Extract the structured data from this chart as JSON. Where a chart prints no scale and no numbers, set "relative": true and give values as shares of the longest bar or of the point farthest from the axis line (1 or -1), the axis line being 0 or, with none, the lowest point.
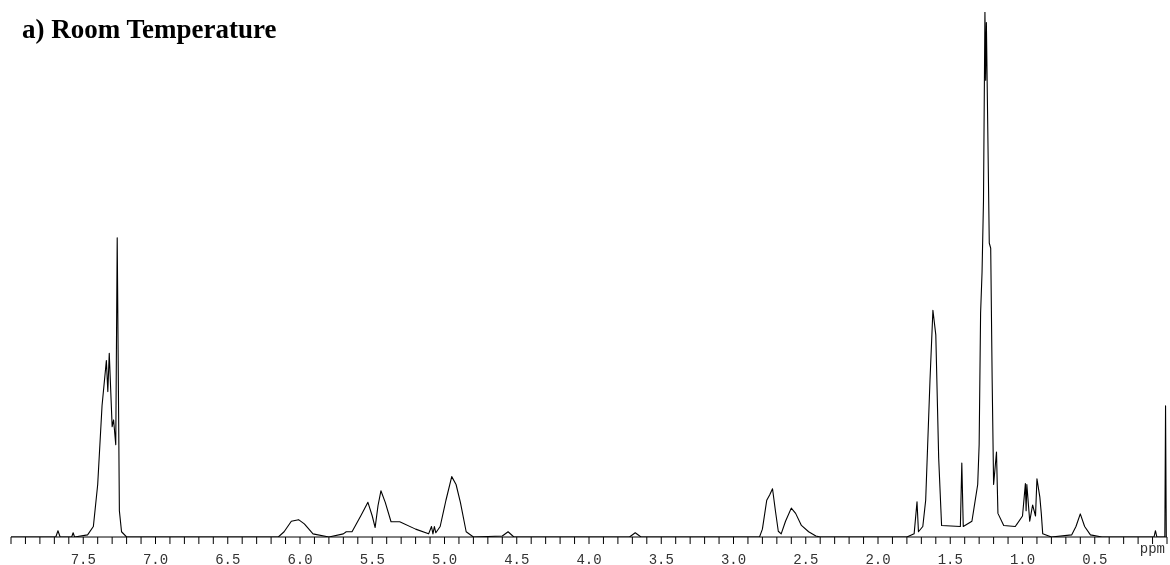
{
  "chart_data": {
    "type": "line",
    "title": "a) Room Temperature",
    "xlabel": "ppm",
    "relative": true,
    "xlim": [
      8.0,
      0.0
    ],
    "xticks": [
      {
        "value": 8.0,
        "label": null
      },
      {
        "value": 7.9,
        "label": null
      },
      {
        "value": 7.8,
        "label": null
      },
      {
        "value": 7.7,
        "label": null
      },
      {
        "value": 7.6,
        "label": null
      },
      {
        "value": 7.5,
        "label": "7.5"
      },
      {
        "value": 7.4,
        "label": null
      },
      {
        "value": 7.3,
        "label": null
      },
      {
        "value": 7.2,
        "label": null
      },
      {
        "value": 7.1,
        "label": null
      },
      {
        "value": 7.0,
        "label": "7.0"
      },
      {
        "value": 6.9,
        "label": null
      },
      {
        "value": 6.8,
        "label": null
      },
      {
        "value": 6.7,
        "label": null
      },
      {
        "value": 6.6,
        "label": null
      },
      {
        "value": 6.5,
        "label": "6.5"
      },
      {
        "value": 6.4,
        "label": null
      },
      {
        "value": 6.3,
        "label": null
      },
      {
        "value": 6.2,
        "label": null
      },
      {
        "value": 6.1,
        "label": null
      },
      {
        "value": 6.0,
        "label": "6.0"
      },
      {
        "value": 5.9,
        "label": null
      },
      {
        "value": 5.8,
        "label": null
      },
      {
        "value": 5.7,
        "label": null
      },
      {
        "value": 5.6,
        "label": null
      },
      {
        "value": 5.5,
        "label": "5.5"
      },
      {
        "value": 5.4,
        "label": null
      },
      {
        "value": 5.3,
        "label": null
      },
      {
        "value": 5.2,
        "label": null
      },
      {
        "value": 5.1,
        "label": null
      },
      {
        "value": 5.0,
        "label": "5.0"
      },
      {
        "value": 4.9,
        "label": null
      },
      {
        "value": 4.8,
        "label": null
      },
      {
        "value": 4.7,
        "label": null
      },
      {
        "value": 4.6,
        "label": null
      },
      {
        "value": 4.5,
        "label": "4.5"
      },
      {
        "value": 4.4,
        "label": null
      },
      {
        "value": 4.3,
        "label": null
      },
      {
        "value": 4.2,
        "label": null
      },
      {
        "value": 4.1,
        "label": null
      },
      {
        "value": 4.0,
        "label": "4.0"
      },
      {
        "value": 3.9,
        "label": null
      },
      {
        "value": 3.8,
        "label": null
      },
      {
        "value": 3.7,
        "label": null
      },
      {
        "value": 3.6,
        "label": null
      },
      {
        "value": 3.5,
        "label": "3.5"
      },
      {
        "value": 3.4,
        "label": null
      },
      {
        "value": 3.3,
        "label": null
      },
      {
        "value": 3.2,
        "label": null
      },
      {
        "value": 3.1,
        "label": null
      },
      {
        "value": 3.0,
        "label": "3.0"
      },
      {
        "value": 2.9,
        "label": null
      },
      {
        "value": 2.8,
        "label": null
      },
      {
        "value": 2.7,
        "label": null
      },
      {
        "value": 2.6,
        "label": null
      },
      {
        "value": 2.5,
        "label": "2.5"
      },
      {
        "value": 2.4,
        "label": null
      },
      {
        "value": 2.3,
        "label": null
      },
      {
        "value": 2.2,
        "label": null
      },
      {
        "value": 2.1,
        "label": null
      },
      {
        "value": 2.0,
        "label": "2.0"
      },
      {
        "value": 1.9,
        "label": null
      },
      {
        "value": 1.8,
        "label": null
      },
      {
        "value": 1.7,
        "label": null
      },
      {
        "value": 1.6,
        "label": null
      },
      {
        "value": 1.5,
        "label": "1.5"
      },
      {
        "value": 1.4,
        "label": null
      },
      {
        "value": 1.3,
        "label": null
      },
      {
        "value": 1.2,
        "label": null
      },
      {
        "value": 1.1,
        "label": null
      },
      {
        "value": 1.0,
        "label": "1.0"
      },
      {
        "value": 0.9,
        "label": null
      },
      {
        "value": 0.8,
        "label": null
      },
      {
        "value": 0.7,
        "label": null
      },
      {
        "value": 0.6,
        "label": null
      },
      {
        "value": 0.5,
        "label": "0.5"
      },
      {
        "value": 0.4,
        "label": null
      },
      {
        "value": 0.3,
        "label": null
      },
      {
        "value": 0.2,
        "label": null
      },
      {
        "value": 0.1,
        "label": null
      },
      {
        "value": 0.0,
        "label": null
      }
    ],
    "grid": false,
    "marker": "none",
    "line_style": "solid",
    "series": [
      {
        "color": "#000000",
        "x": [
          8.0,
          7.69,
          7.675,
          7.66,
          7.58,
          7.57,
          7.56,
          7.47,
          7.43,
          7.4,
          7.37,
          7.34,
          7.33,
          7.32,
          7.3,
          7.29,
          7.275,
          7.265,
          7.25,
          7.235,
          7.2,
          6.15,
          6.11,
          6.06,
          6.01,
          5.97,
          5.91,
          5.8,
          5.7,
          5.68,
          5.64,
          5.58,
          5.53,
          5.5,
          5.48,
          5.46,
          5.44,
          5.41,
          5.37,
          5.31,
          5.2,
          5.11,
          5.09,
          5.08,
          5.07,
          5.06,
          5.03,
          4.99,
          4.95,
          4.92,
          4.89,
          4.85,
          4.8,
          4.6,
          4.56,
          4.52,
          3.72,
          3.68,
          3.64,
          2.82,
          2.8,
          2.77,
          2.75,
          2.73,
          2.71,
          2.69,
          2.67,
          2.64,
          2.6,
          2.57,
          2.53,
          2.48,
          2.43,
          2.4,
          1.8,
          1.75,
          1.73,
          1.72,
          1.69,
          1.67,
          1.64,
          1.62,
          1.6,
          1.58,
          1.56,
          1.43,
          1.42,
          1.41,
          1.35,
          1.31,
          1.3,
          1.29,
          1.28,
          1.27,
          1.26,
          1.255,
          1.25,
          1.23,
          1.22,
          1.21,
          1.2,
          1.18,
          1.17,
          1.13,
          1.05,
          1.0,
          0.98,
          0.975,
          0.97,
          0.95,
          0.93,
          0.91,
          0.9,
          0.88,
          0.87,
          0.86,
          0.8,
          0.66,
          0.63,
          0.6,
          0.57,
          0.53,
          0.45,
          0.09,
          0.08,
          0.07,
          0.015,
          0.01,
          0.005
        ],
        "values": [
          0,
          0,
          0.012,
          0,
          0,
          0.008,
          0,
          0.004,
          0.02,
          0.1,
          0.25,
          0.336,
          0.277,
          0.35,
          0.21,
          0.223,
          0.176,
          0.57,
          0.05,
          0.01,
          0,
          0,
          0.01,
          0.03,
          0.033,
          0.025,
          0.006,
          0,
          0.006,
          0.01,
          0.01,
          0.04,
          0.066,
          0.04,
          0.018,
          0.06,
          0.088,
          0.066,
          0.029,
          0.029,
          0.015,
          0.006,
          0.02,
          0.006,
          0.02,
          0.008,
          0.02,
          0.07,
          0.115,
          0.1,
          0.066,
          0.01,
          0,
          0.002,
          0.01,
          0,
          0,
          0.008,
          0,
          0,
          0.015,
          0.07,
          0.08,
          0.092,
          0.05,
          0.011,
          0.006,
          0.03,
          0.055,
          0.045,
          0.022,
          0.01,
          0.002,
          0,
          0,
          0.006,
          0.067,
          0.01,
          0.02,
          0.07,
          0.3,
          0.432,
          0.385,
          0.15,
          0.022,
          0.02,
          0.141,
          0.02,
          0.03,
          0.1,
          0.176,
          0.426,
          0.504,
          0.64,
          1.0,
          0.87,
          0.98,
          0.56,
          0.55,
          0.3,
          0.1,
          0.162,
          0.045,
          0.022,
          0.02,
          0.04,
          0.102,
          0.05,
          0.1,
          0.03,
          0.061,
          0.04,
          0.111,
          0.076,
          0.045,
          0.006,
          0,
          0.004,
          0.02,
          0.044,
          0.02,
          0.004,
          0,
          0,
          0.012,
          0,
          0,
          0.25,
          0
        ]
      }
    ]
  }
}
